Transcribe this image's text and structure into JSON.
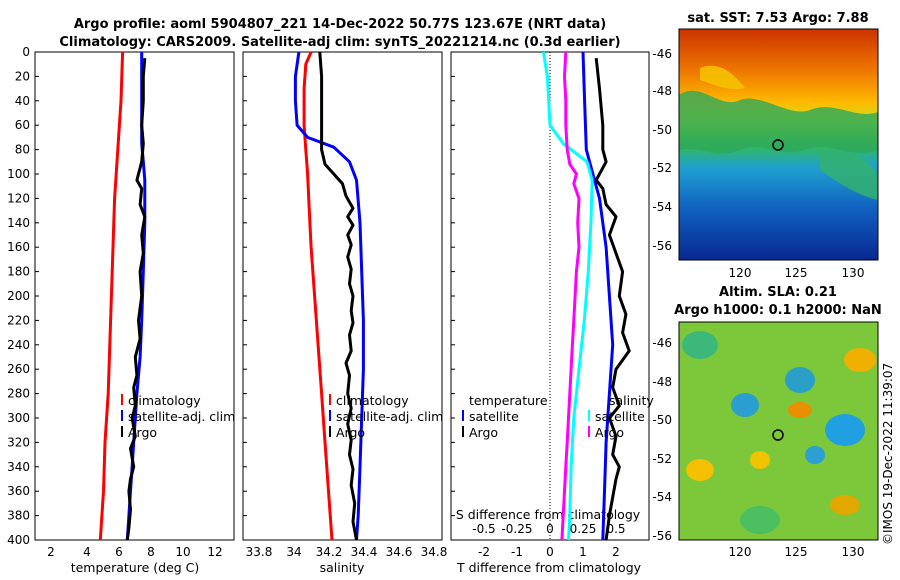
{
  "header": {
    "title_line1": "Argo profile: aoml 5904807_221 14-Dec-2022 50.77S 123.67E (NRT data)",
    "title_line2": "Climatology: CARS2009. Satellite-adj clim: synTS_20221214.nc (0.3d earlier)"
  },
  "colors": {
    "red": "#ff0000",
    "blue": "#0000ff",
    "black": "#000000",
    "cyan": "#00ffff",
    "magenta": "#ff00ff"
  },
  "panels": {
    "temperature": {
      "xlabel": "temperature (deg C)",
      "xticks": [
        "2",
        "4",
        "6",
        "8",
        "10",
        "12"
      ],
      "legend": [
        "climatology",
        "satellite-adj. clim",
        "Argo"
      ]
    },
    "salinity": {
      "xlabel": "salinity",
      "xticks": [
        "33.8",
        "34",
        "34.2",
        "34.4",
        "34.6",
        "34.8"
      ],
      "legend": [
        "climatology",
        "satellite-adj. clim",
        "Argo"
      ]
    },
    "difference": {
      "xlabel": "T difference from climatology",
      "top_label": "S difference from climatology",
      "xticks": [
        "-2",
        "-1",
        "0",
        "1",
        "2"
      ],
      "top_ticks": [
        "-0.5",
        "-0.25",
        "0",
        "0.25",
        "0.5"
      ],
      "legend_t_title": "temperature",
      "legend_t": [
        "satellite",
        "Argo"
      ],
      "legend_s_title": "salinity",
      "legend_s": [
        "satellite",
        "Argo"
      ]
    },
    "depth_ticks": [
      "0",
      "20",
      "40",
      "60",
      "80",
      "100",
      "120",
      "140",
      "160",
      "180",
      "200",
      "220",
      "240",
      "260",
      "280",
      "300",
      "320",
      "340",
      "360",
      "380",
      "400"
    ],
    "sst_map": {
      "title": "sat. SST: 7.53 Argo: 7.88",
      "yticks": [
        "-46",
        "-48",
        "-50",
        "-52",
        "-54",
        "-56"
      ],
      "xticks": [
        "120",
        "125",
        "130"
      ]
    },
    "sla_map": {
      "title_line1": "Altim. SLA: 0.21",
      "title_line2": "Argo h1000: 0.1 h2000: NaN",
      "yticks": [
        "-46",
        "-48",
        "-50",
        "-52",
        "-54",
        "-56"
      ],
      "xticks": [
        "120",
        "125",
        "130"
      ]
    }
  },
  "watermark": "©IMOS 19-Dec-2022 11:39:07",
  "chart_data": [
    {
      "type": "line",
      "title": "temperature profile",
      "xlabel": "temperature (deg C)",
      "ylabel": "depth",
      "xlim": [
        1,
        13.5
      ],
      "ylim": [
        400,
        0
      ],
      "series": [
        {
          "name": "climatology",
          "color": "red",
          "points": [
            [
              6.5,
              0
            ],
            [
              6.4,
              40
            ],
            [
              6.2,
              80
            ],
            [
              6.0,
              120
            ],
            [
              5.9,
              160
            ],
            [
              5.8,
              200
            ],
            [
              5.7,
              240
            ],
            [
              5.6,
              280
            ],
            [
              5.4,
              320
            ],
            [
              5.3,
              360
            ],
            [
              5.2,
              380
            ],
            [
              5.1,
              400
            ]
          ]
        },
        {
          "name": "satellite-adj. clim",
          "color": "blue",
          "points": [
            [
              7.7,
              0
            ],
            [
              7.7,
              60
            ],
            [
              7.7,
              75
            ],
            [
              7.8,
              90
            ],
            [
              7.9,
              105
            ],
            [
              7.9,
              140
            ],
            [
              7.8,
              180
            ],
            [
              7.7,
              220
            ],
            [
              7.6,
              250
            ],
            [
              7.4,
              280
            ],
            [
              7.2,
              320
            ],
            [
              7.0,
              360
            ],
            [
              6.8,
              400
            ]
          ]
        },
        {
          "name": "Argo",
          "color": "black",
          "points": [
            [
              7.9,
              5
            ],
            [
              7.8,
              20
            ],
            [
              7.8,
              40
            ],
            [
              7.7,
              60
            ],
            [
              7.8,
              75
            ],
            [
              7.7,
              90
            ],
            [
              7.5,
              100
            ],
            [
              7.4,
              105
            ],
            [
              7.7,
              112
            ],
            [
              7.6,
              125
            ],
            [
              7.9,
              135
            ],
            [
              7.7,
              150
            ],
            [
              7.8,
              165
            ],
            [
              7.6,
              180
            ],
            [
              7.7,
              200
            ],
            [
              7.5,
              220
            ],
            [
              7.6,
              235
            ],
            [
              7.3,
              250
            ],
            [
              7.4,
              265
            ],
            [
              7.2,
              275
            ],
            [
              7.3,
              290
            ],
            [
              7.1,
              300
            ],
            [
              7.3,
              315
            ],
            [
              7.0,
              325
            ],
            [
              7.2,
              340
            ],
            [
              7.0,
              350
            ],
            [
              6.9,
              360
            ],
            [
              7.0,
              375
            ],
            [
              6.9,
              390
            ],
            [
              6.8,
              400
            ]
          ]
        }
      ]
    },
    {
      "type": "line",
      "title": "salinity profile",
      "xlabel": "salinity",
      "ylabel": "depth",
      "xlim": [
        33.73,
        34.87
      ],
      "ylim": [
        400,
        0
      ],
      "series": [
        {
          "name": "climatology",
          "color": "red",
          "points": [
            [
              34.12,
              0
            ],
            [
              34.09,
              10
            ],
            [
              34.08,
              30
            ],
            [
              34.08,
              60
            ],
            [
              34.09,
              80
            ],
            [
              34.1,
              100
            ],
            [
              34.11,
              130
            ],
            [
              34.12,
              160
            ],
            [
              34.14,
              200
            ],
            [
              34.16,
              240
            ],
            [
              34.18,
              280
            ],
            [
              34.2,
              320
            ],
            [
              34.22,
              360
            ],
            [
              34.24,
              400
            ]
          ]
        },
        {
          "name": "satellite-adj. clim",
          "color": "blue",
          "points": [
            [
              34.05,
              0
            ],
            [
              34.03,
              20
            ],
            [
              34.03,
              40
            ],
            [
              34.04,
              60
            ],
            [
              34.1,
              70
            ],
            [
              34.25,
              78
            ],
            [
              34.34,
              90
            ],
            [
              34.38,
              105
            ],
            [
              34.4,
              140
            ],
            [
              34.41,
              180
            ],
            [
              34.42,
              220
            ],
            [
              34.42,
              260
            ],
            [
              34.41,
              300
            ],
            [
              34.4,
              340
            ],
            [
              34.39,
              380
            ],
            [
              34.38,
              400
            ]
          ]
        },
        {
          "name": "Argo",
          "color": "black",
          "points": [
            [
              34.17,
              0
            ],
            [
              34.18,
              20
            ],
            [
              34.18,
              40
            ],
            [
              34.18,
              60
            ],
            [
              34.18,
              80
            ],
            [
              34.2,
              92
            ],
            [
              34.25,
              100
            ],
            [
              34.3,
              108
            ],
            [
              34.32,
              118
            ],
            [
              34.36,
              128
            ],
            [
              34.33,
              135
            ],
            [
              34.36,
              142
            ],
            [
              34.33,
              150
            ],
            [
              34.35,
              158
            ],
            [
              34.33,
              168
            ],
            [
              34.35,
              178
            ],
            [
              34.34,
              190
            ],
            [
              34.36,
              200
            ],
            [
              34.35,
              212
            ],
            [
              34.36,
              222
            ],
            [
              34.34,
              232
            ],
            [
              34.35,
              245
            ],
            [
              34.32,
              255
            ],
            [
              34.34,
              265
            ],
            [
              34.33,
              280
            ],
            [
              34.35,
              292
            ],
            [
              34.33,
              305
            ],
            [
              34.35,
              318
            ],
            [
              34.34,
              330
            ],
            [
              34.36,
              342
            ],
            [
              34.35,
              355
            ],
            [
              34.37,
              370
            ],
            [
              34.36,
              385
            ],
            [
              34.38,
              400
            ]
          ]
        }
      ]
    },
    {
      "type": "line",
      "title": "difference from climatology",
      "xlabel": "T difference from climatology",
      "ylabel": "depth",
      "xlim": [
        -3.0,
        3.0
      ],
      "ylim": [
        400,
        0
      ],
      "secondary_x": {
        "label": "S difference from climatology",
        "xlim": [
          -0.75,
          0.75
        ]
      },
      "series": [
        {
          "name": "temperature satellite",
          "color": "blue",
          "points": [
            [
              1.0,
              0
            ],
            [
              1.05,
              40
            ],
            [
              1.1,
              80
            ],
            [
              1.3,
              100
            ],
            [
              1.5,
              120
            ],
            [
              1.7,
              160
            ],
            [
              1.8,
              200
            ],
            [
              1.9,
              240
            ],
            [
              1.8,
              280
            ],
            [
              1.7,
              320
            ],
            [
              1.65,
              360
            ],
            [
              1.6,
              400
            ]
          ]
        },
        {
          "name": "temperature Argo",
          "color": "black",
          "points": [
            [
              1.4,
              5
            ],
            [
              1.5,
              30
            ],
            [
              1.6,
              60
            ],
            [
              1.6,
              80
            ],
            [
              1.7,
              90
            ],
            [
              1.5,
              100
            ],
            [
              1.4,
              105
            ],
            [
              1.6,
              112
            ],
            [
              1.7,
              125
            ],
            [
              2.0,
              135
            ],
            [
              1.8,
              150
            ],
            [
              2.0,
              165
            ],
            [
              2.2,
              180
            ],
            [
              2.1,
              200
            ],
            [
              2.3,
              215
            ],
            [
              2.2,
              230
            ],
            [
              2.4,
              245
            ],
            [
              2.0,
              260
            ],
            [
              1.9,
              275
            ],
            [
              2.1,
              290
            ],
            [
              1.8,
              300
            ],
            [
              2.0,
              315
            ],
            [
              1.9,
              330
            ],
            [
              2.1,
              340
            ],
            [
              2.0,
              350
            ],
            [
              1.9,
              365
            ],
            [
              1.8,
              380
            ],
            [
              1.7,
              400
            ]
          ]
        },
        {
          "name": "salinity satellite",
          "color": "cyan",
          "points": [
            [
              -0.05,
              0
            ],
            [
              -0.02,
              20
            ],
            [
              -0.01,
              40
            ],
            [
              0.0,
              60
            ],
            [
              0.1,
              75
            ],
            [
              0.28,
              90
            ],
            [
              0.32,
              105
            ],
            [
              0.31,
              140
            ],
            [
              0.29,
              180
            ],
            [
              0.26,
              220
            ],
            [
              0.22,
              260
            ],
            [
              0.18,
              300
            ],
            [
              0.16,
              340
            ],
            [
              0.15,
              380
            ],
            [
              0.14,
              400
            ]
          ]
        },
        {
          "name": "salinity Argo",
          "color": "magenta",
          "points": [
            [
              0.12,
              0
            ],
            [
              0.11,
              20
            ],
            [
              0.12,
              40
            ],
            [
              0.12,
              60
            ],
            [
              0.13,
              80
            ],
            [
              0.15,
              92
            ],
            [
              0.2,
              100
            ],
            [
              0.18,
              108
            ],
            [
              0.22,
              120
            ],
            [
              0.21,
              140
            ],
            [
              0.22,
              160
            ],
            [
              0.2,
              180
            ],
            [
              0.19,
              200
            ],
            [
              0.18,
              220
            ],
            [
              0.17,
              240
            ],
            [
              0.16,
              260
            ],
            [
              0.15,
              280
            ],
            [
              0.14,
              300
            ],
            [
              0.13,
              320
            ],
            [
              0.12,
              340
            ],
            [
              0.11,
              360
            ],
            [
              0.1,
              380
            ],
            [
              0.09,
              400
            ]
          ]
        }
      ]
    }
  ]
}
